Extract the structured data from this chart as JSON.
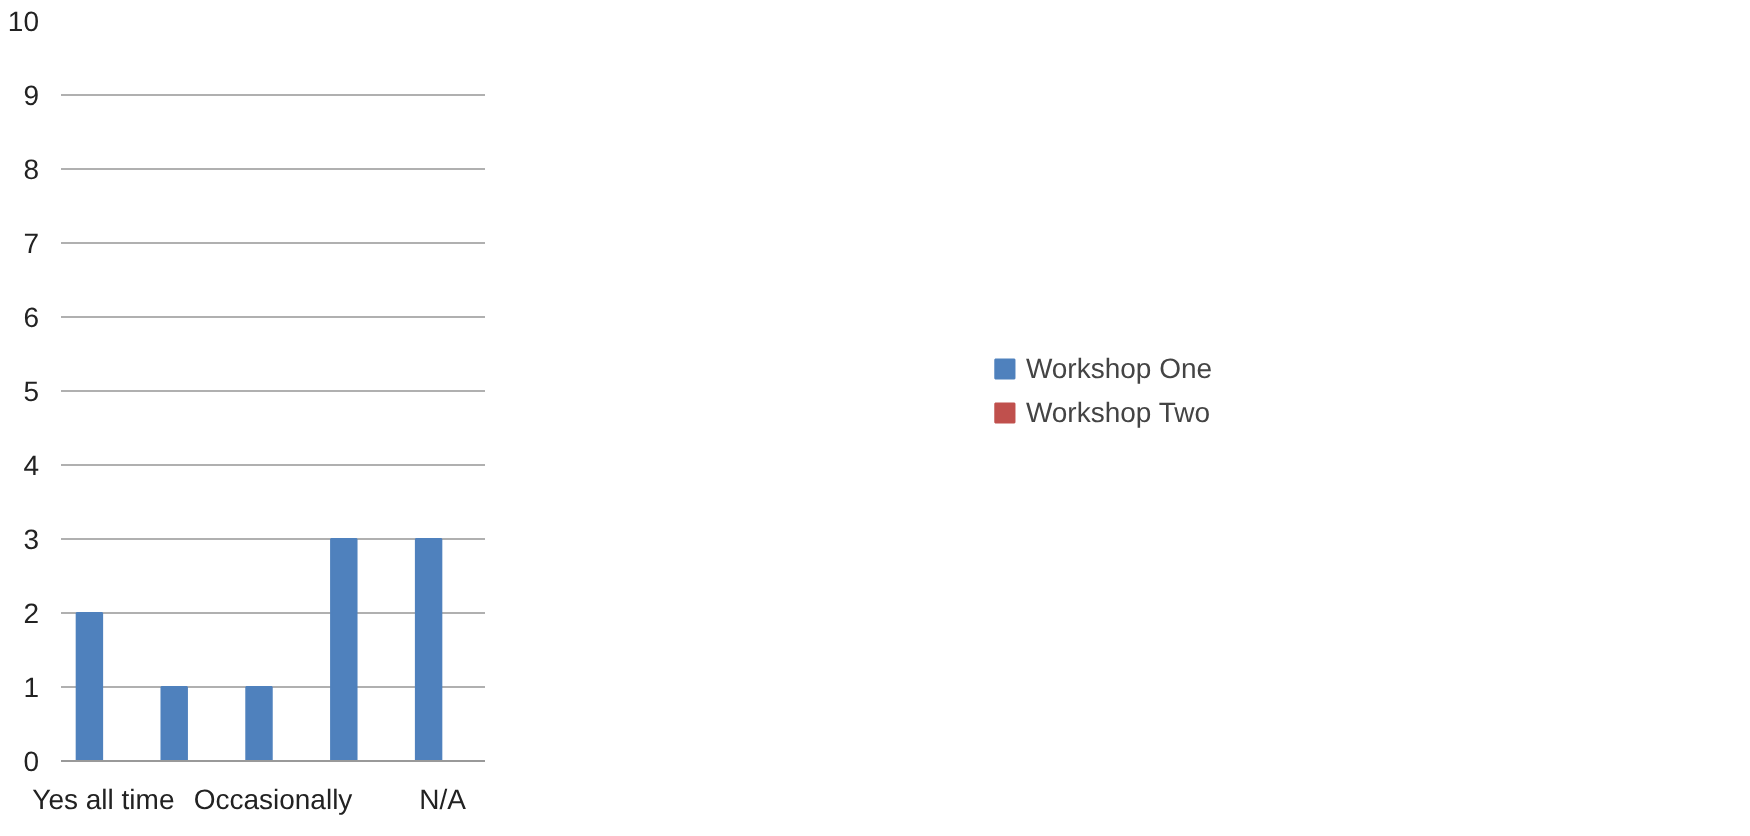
{
  "chart_data": {
    "type": "bar",
    "categories": [
      "Yes all time",
      null,
      "Occasionally",
      null,
      "N/A"
    ],
    "series": [
      {
        "name": "Workshop One",
        "color": "#4f81bd",
        "values": [
          2,
          1,
          1,
          3,
          3
        ]
      },
      {
        "name": "Workshop Two",
        "color": "#c0504d",
        "values": [
          0,
          0,
          0,
          0,
          0
        ]
      }
    ],
    "ylim": [
      0,
      10
    ],
    "yticks": [
      0,
      1,
      2,
      3,
      4,
      5,
      6,
      7,
      8,
      9,
      10
    ],
    "grid": "y",
    "legend": "right"
  }
}
